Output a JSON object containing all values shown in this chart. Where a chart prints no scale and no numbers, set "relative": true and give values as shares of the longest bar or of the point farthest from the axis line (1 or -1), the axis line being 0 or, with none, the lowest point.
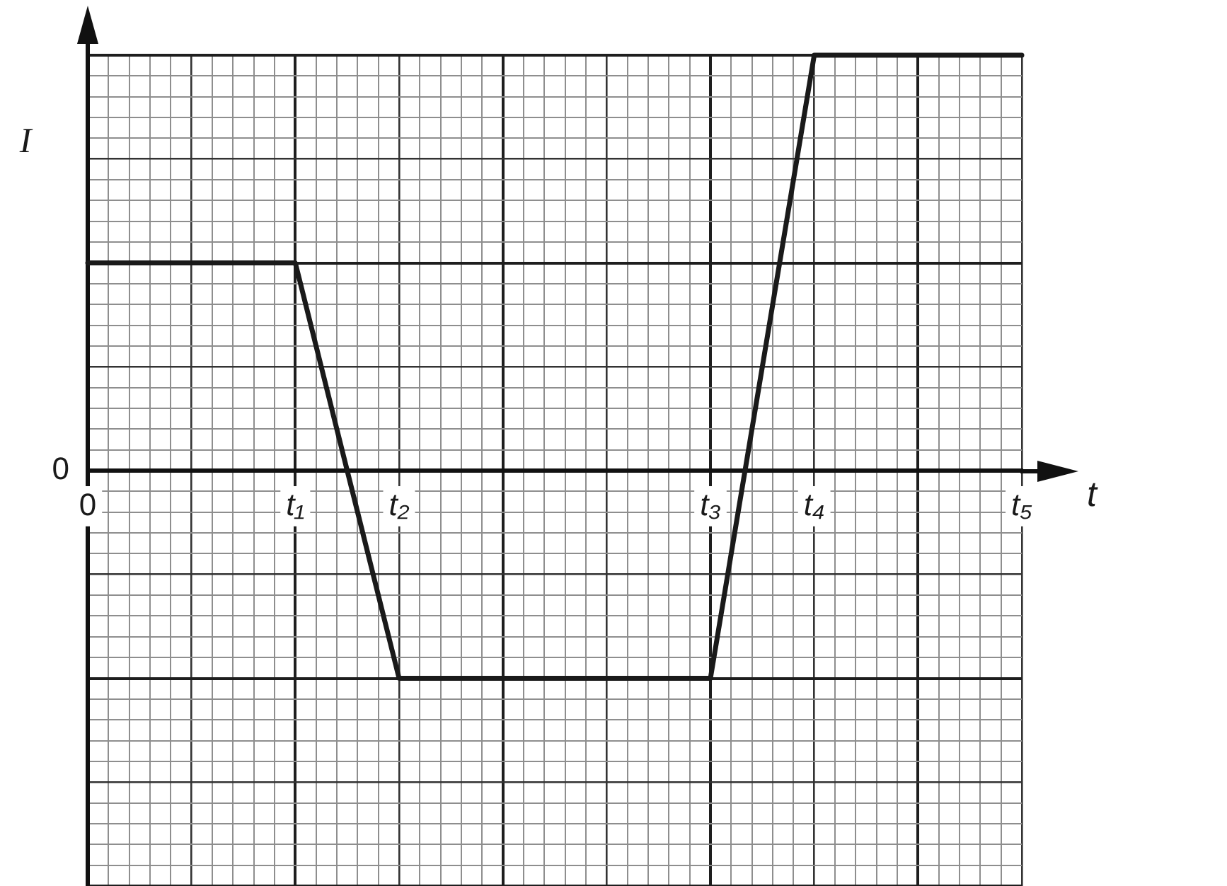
{
  "chart_data": {
    "type": "line",
    "xlabel": "t",
    "ylabel": "I",
    "relative": true,
    "grid": true,
    "marker": "none",
    "color": "#1a1a1a",
    "categories": [
      "0",
      null,
      null,
      null,
      null,
      null,
      null,
      null,
      null,
      null,
      "t₁",
      null,
      null,
      null,
      null,
      "t₂",
      null,
      null,
      null,
      null,
      null,
      null,
      null,
      null,
      null,
      null,
      null,
      null,
      null,
      null,
      "t₃",
      null,
      null,
      null,
      null,
      "t₄",
      null,
      null,
      null,
      null,
      null,
      null,
      null,
      null,
      null,
      "t₅"
    ],
    "values": [
      0.5,
      0.5,
      0.5,
      0.5,
      0.5,
      0.5,
      0.5,
      0.5,
      0.5,
      0.5,
      0.5,
      0.3,
      0.1,
      -0.1,
      -0.3,
      -0.5,
      -0.5,
      -0.5,
      -0.5,
      -0.5,
      -0.5,
      -0.5,
      -0.5,
      -0.5,
      -0.5,
      -0.5,
      -0.5,
      -0.5,
      -0.5,
      -0.5,
      -0.5,
      -0.2,
      0.1,
      0.4,
      0.7,
      1,
      1,
      1,
      1,
      1,
      1,
      1,
      1,
      1,
      1,
      1
    ],
    "annotations": [
      "0"
    ]
  }
}
